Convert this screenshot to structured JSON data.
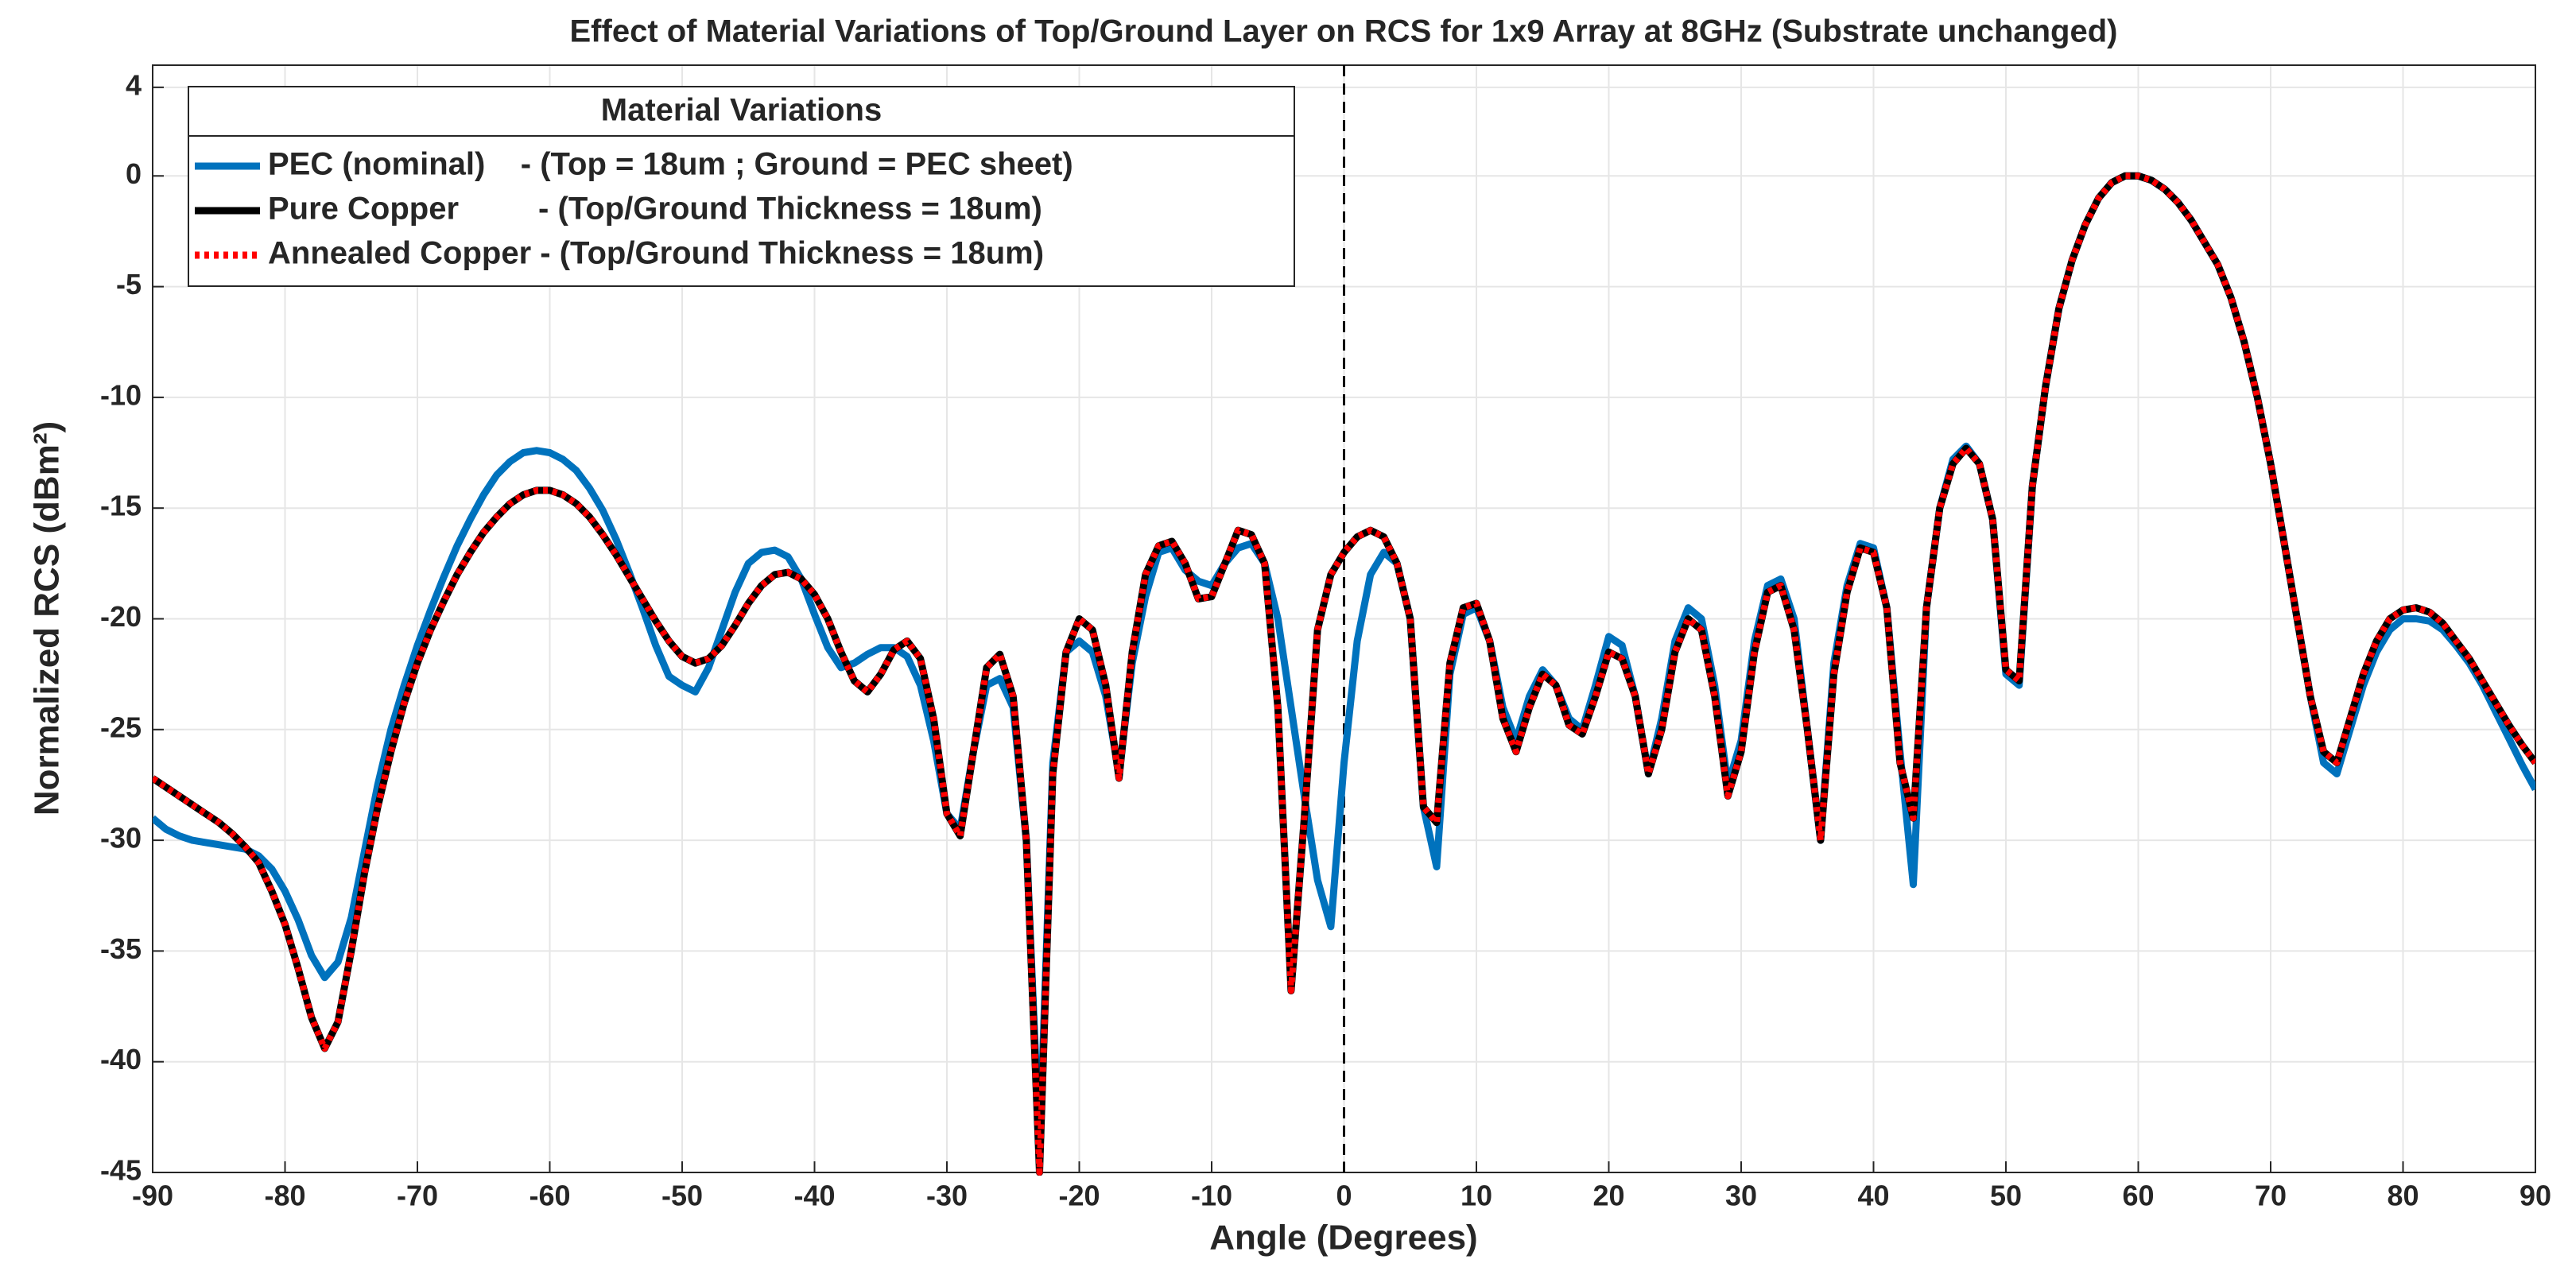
{
  "chart_data": {
    "type": "line",
    "title": "Effect of Material Variations of Top/Ground Layer on RCS for 1x9 Array at 8GHz (Substrate unchanged)",
    "xlabel": "Angle (Degrees)",
    "ylabel": "Normalized RCS (dBm²)",
    "legend_title": "Material Variations",
    "legend": "upper left",
    "grid": true,
    "vline": 0,
    "xlim": [
      -90,
      90
    ],
    "ylim": [
      -45,
      5
    ],
    "xticks": [
      -90,
      -80,
      -70,
      -60,
      -50,
      -40,
      -30,
      -20,
      -10,
      0,
      10,
      20,
      30,
      40,
      50,
      60,
      70,
      80,
      90
    ],
    "yticks": [
      -45,
      -40,
      -35,
      -30,
      -25,
      -20,
      -15,
      -10,
      -5,
      0,
      4
    ],
    "x": [
      -90,
      -89,
      -88,
      -87,
      -86,
      -85,
      -84,
      -83,
      -82,
      -81,
      -80,
      -79,
      -78,
      -77,
      -76,
      -75,
      -74,
      -73,
      -72,
      -71,
      -70,
      -69,
      -68,
      -67,
      -66,
      -65,
      -64,
      -63,
      -62,
      -61,
      -60,
      -59,
      -58,
      -57,
      -56,
      -55,
      -54,
      -53,
      -52,
      -51,
      -50,
      -49,
      -48,
      -47,
      -46,
      -45,
      -44,
      -43,
      -42,
      -41,
      -40,
      -39,
      -38,
      -37,
      -36,
      -35,
      -34,
      -33,
      -32,
      -31,
      -30,
      -29,
      -28,
      -27,
      -26,
      -25,
      -24,
      -23,
      -22,
      -21,
      -20,
      -19,
      -18,
      -17,
      -16,
      -15,
      -14,
      -13,
      -12,
      -11,
      -10,
      -9,
      -8,
      -7,
      -6,
      -5,
      -4,
      -3,
      -2,
      -1,
      0,
      1,
      2,
      3,
      4,
      5,
      6,
      7,
      8,
      9,
      10,
      11,
      12,
      13,
      14,
      15,
      16,
      17,
      18,
      19,
      20,
      21,
      22,
      23,
      24,
      25,
      26,
      27,
      28,
      29,
      30,
      31,
      32,
      33,
      34,
      35,
      36,
      37,
      38,
      39,
      40,
      41,
      42,
      43,
      44,
      45,
      46,
      47,
      48,
      49,
      50,
      51,
      52,
      53,
      54,
      55,
      56,
      57,
      58,
      59,
      60,
      61,
      62,
      63,
      64,
      65,
      66,
      67,
      68,
      69,
      70,
      71,
      72,
      73,
      74,
      75,
      76,
      77,
      78,
      79,
      80,
      81,
      82,
      83,
      84,
      85,
      86,
      87,
      88,
      89,
      90
    ],
    "series": [
      {
        "name": "PEC (nominal)    - (Top = 18um ; Ground = PEC sheet)",
        "color": "#0072bd",
        "linestyle": "solid",
        "values": [
          -29.0,
          -29.5,
          -29.8,
          -30.0,
          -30.1,
          -30.2,
          -30.3,
          -30.4,
          -30.7,
          -31.3,
          -32.3,
          -33.6,
          -35.2,
          -36.2,
          -35.5,
          -33.5,
          -30.5,
          -27.5,
          -25.0,
          -23.0,
          -21.2,
          -19.6,
          -18.1,
          -16.7,
          -15.5,
          -14.4,
          -13.5,
          -12.9,
          -12.5,
          -12.4,
          -12.5,
          -12.8,
          -13.3,
          -14.1,
          -15.1,
          -16.4,
          -17.9,
          -19.5,
          -21.2,
          -22.6,
          -23.0,
          -23.3,
          -22.2,
          -20.5,
          -18.8,
          -17.5,
          -17.0,
          -16.9,
          -17.2,
          -18.2,
          -19.8,
          -21.3,
          -22.2,
          -22.0,
          -21.6,
          -21.3,
          -21.3,
          -21.7,
          -23.0,
          -25.5,
          -28.8,
          -29.5,
          -26.0,
          -23.0,
          -22.7,
          -24.0,
          -30.0,
          -44.0,
          -26.5,
          -21.5,
          -21.0,
          -21.5,
          -23.5,
          -27.0,
          -22.0,
          -19.0,
          -17.0,
          -16.8,
          -17.8,
          -18.3,
          -18.5,
          -17.5,
          -16.8,
          -16.6,
          -17.5,
          -20.0,
          -24.0,
          -28.0,
          -31.8,
          -33.9,
          -26.5,
          -21.0,
          -18.0,
          -17.0,
          -17.5,
          -20.0,
          -28.5,
          -31.2,
          -22.5,
          -19.8,
          -19.5,
          -21.0,
          -24.0,
          -25.5,
          -23.5,
          -22.3,
          -23.0,
          -24.5,
          -25.0,
          -23.0,
          -20.8,
          -21.2,
          -23.5,
          -27.0,
          -24.5,
          -21.0,
          -19.5,
          -20.0,
          -23.0,
          -27.5,
          -25.5,
          -21.0,
          -18.5,
          -18.2,
          -20.0,
          -25.0,
          -30.0,
          -22.0,
          -18.5,
          -16.6,
          -16.8,
          -19.5,
          -26.0,
          -32.0,
          -19.5,
          -15.0,
          -12.8,
          -12.2,
          -13.0,
          -15.5,
          -22.5,
          -23.0,
          -14.0,
          -9.5,
          -6.0,
          -3.8,
          -2.2,
          -1.0,
          -0.3,
          0.0,
          0.0,
          -0.2,
          -0.6,
          -1.2,
          -2.0,
          -3.0,
          -4.0,
          -5.5,
          -7.5,
          -10.0,
          -13.0,
          -16.5,
          -20.0,
          -23.5,
          -26.5,
          -27.0,
          -25.0,
          -23.0,
          -21.5,
          -20.5,
          -20.0,
          -20.0,
          -20.1,
          -20.5,
          -21.2,
          -22.0,
          -23.0,
          -24.2,
          -25.4,
          -26.6,
          -27.7
        ]
      },
      {
        "name": "Pure Copper         - (Top/Ground Thickness = 18um)",
        "color": "#000000",
        "linestyle": "solid",
        "values": [
          -27.2,
          -27.6,
          -28.0,
          -28.4,
          -28.8,
          -29.2,
          -29.7,
          -30.3,
          -31.0,
          -32.3,
          -33.8,
          -35.8,
          -38.0,
          -39.4,
          -38.2,
          -35.0,
          -31.5,
          -28.5,
          -26.0,
          -23.8,
          -22.0,
          -20.5,
          -19.2,
          -18.0,
          -17.0,
          -16.1,
          -15.4,
          -14.8,
          -14.4,
          -14.2,
          -14.2,
          -14.4,
          -14.8,
          -15.4,
          -16.2,
          -17.1,
          -18.1,
          -19.1,
          -20.1,
          -21.0,
          -21.7,
          -22.0,
          -21.8,
          -21.2,
          -20.3,
          -19.3,
          -18.5,
          -18.0,
          -17.9,
          -18.2,
          -18.9,
          -20.0,
          -21.5,
          -22.8,
          -23.3,
          -22.5,
          -21.4,
          -21.0,
          -21.8,
          -24.5,
          -28.8,
          -29.8,
          -26.0,
          -22.2,
          -21.6,
          -23.5,
          -30.0,
          -45,
          -27.0,
          -21.5,
          -20.0,
          -20.5,
          -23.0,
          -27.2,
          -21.5,
          -18.0,
          -16.7,
          -16.5,
          -17.5,
          -19.1,
          -19.0,
          -17.5,
          -16.0,
          -16.2,
          -17.5,
          -24.0,
          -36.8,
          -29.0,
          -20.5,
          -18.0,
          -17.0,
          -16.3,
          -16.0,
          -16.3,
          -17.5,
          -20.0,
          -28.5,
          -29.2,
          -22.0,
          -19.5,
          -19.3,
          -21.0,
          -24.5,
          -26.0,
          -24.0,
          -22.5,
          -23.0,
          -24.8,
          -25.2,
          -23.5,
          -21.5,
          -21.8,
          -23.5,
          -27.0,
          -25.0,
          -21.5,
          -20.0,
          -20.5,
          -23.5,
          -28.0,
          -26.0,
          -21.5,
          -18.8,
          -18.5,
          -20.5,
          -25.0,
          -30.0,
          -22.5,
          -18.8,
          -16.8,
          -17.0,
          -19.5,
          -26.5,
          -29.0,
          -19.5,
          -15.0,
          -13.0,
          -12.3,
          -13.0,
          -15.5,
          -22.3,
          -22.8,
          -14.0,
          -9.5,
          -6.0,
          -3.8,
          -2.2,
          -1.0,
          -0.3,
          0.0,
          0.0,
          -0.2,
          -0.6,
          -1.2,
          -2.0,
          -3.0,
          -4.0,
          -5.5,
          -7.5,
          -10.0,
          -13.0,
          -16.5,
          -20.0,
          -23.5,
          -26.0,
          -26.5,
          -24.5,
          -22.5,
          -21.0,
          -20.0,
          -19.6,
          -19.5,
          -19.7,
          -20.2,
          -21.0,
          -21.8,
          -22.8,
          -23.8,
          -24.8,
          -25.7,
          -26.5
        ]
      },
      {
        "name": "Annealed Copper - (Top/Ground Thickness = 18um)",
        "color": "#ff0000",
        "linestyle": "dotted",
        "values": [
          -27.2,
          -27.6,
          -28.0,
          -28.4,
          -28.8,
          -29.2,
          -29.7,
          -30.3,
          -31.0,
          -32.3,
          -33.8,
          -35.8,
          -38.0,
          -39.4,
          -38.2,
          -35.0,
          -31.5,
          -28.5,
          -26.0,
          -23.8,
          -22.0,
          -20.5,
          -19.2,
          -18.0,
          -17.0,
          -16.1,
          -15.4,
          -14.8,
          -14.4,
          -14.2,
          -14.2,
          -14.4,
          -14.8,
          -15.4,
          -16.2,
          -17.1,
          -18.1,
          -19.1,
          -20.1,
          -21.0,
          -21.7,
          -22.0,
          -21.8,
          -21.2,
          -20.3,
          -19.3,
          -18.5,
          -18.0,
          -17.9,
          -18.2,
          -18.9,
          -20.0,
          -21.5,
          -22.8,
          -23.3,
          -22.5,
          -21.4,
          -21.0,
          -21.8,
          -24.5,
          -28.8,
          -29.8,
          -26.0,
          -22.2,
          -21.6,
          -23.5,
          -30.0,
          -45,
          -27.0,
          -21.5,
          -20.0,
          -20.5,
          -23.0,
          -27.2,
          -21.5,
          -18.0,
          -16.7,
          -16.5,
          -17.5,
          -19.1,
          -19.0,
          -17.5,
          -16.0,
          -16.2,
          -17.5,
          -24.0,
          -36.8,
          -29.0,
          -20.5,
          -18.0,
          -17.0,
          -16.3,
          -16.0,
          -16.3,
          -17.5,
          -20.0,
          -28.5,
          -29.2,
          -22.0,
          -19.5,
          -19.3,
          -21.0,
          -24.5,
          -26.0,
          -24.0,
          -22.5,
          -23.0,
          -24.8,
          -25.2,
          -23.5,
          -21.5,
          -21.8,
          -23.5,
          -27.0,
          -25.0,
          -21.5,
          -20.0,
          -20.5,
          -23.5,
          -28.0,
          -26.0,
          -21.5,
          -18.8,
          -18.5,
          -20.5,
          -25.0,
          -30.0,
          -22.5,
          -18.8,
          -16.8,
          -17.0,
          -19.5,
          -26.5,
          -29.0,
          -19.5,
          -15.0,
          -13.0,
          -12.3,
          -13.0,
          -15.5,
          -22.3,
          -22.8,
          -14.0,
          -9.5,
          -6.0,
          -3.8,
          -2.2,
          -1.0,
          -0.3,
          0.0,
          0.0,
          -0.2,
          -0.6,
          -1.2,
          -2.0,
          -3.0,
          -4.0,
          -5.5,
          -7.5,
          -10.0,
          -13.0,
          -16.5,
          -20.0,
          -23.5,
          -26.0,
          -26.5,
          -24.5,
          -22.5,
          -21.0,
          -20.0,
          -19.6,
          -19.5,
          -19.7,
          -20.2,
          -21.0,
          -21.8,
          -22.8,
          -23.8,
          -24.8,
          -25.7,
          -26.5
        ]
      }
    ]
  }
}
